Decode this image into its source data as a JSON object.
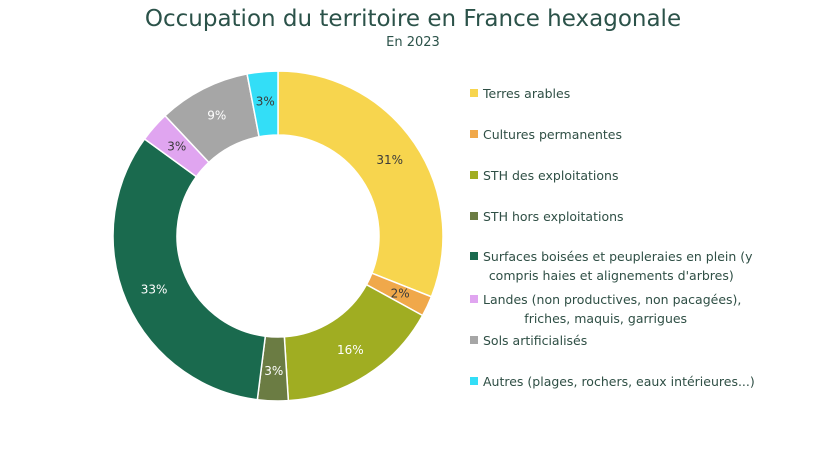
{
  "title": "Occupation du territoire en France hexagonale",
  "subtitle": "En 2023",
  "chart_data": {
    "type": "pie",
    "subtype": "donut",
    "title": "Occupation du territoire en France hexagonale",
    "subtitle": "En 2023",
    "legend_position": "right",
    "categories": [
      "Terres arables",
      "Cultures permanentes",
      "STH des exploitations",
      "STH hors exploitations",
      "Surfaces boisées et peupleraies en plein (y compris haies et alignements d'arbres)",
      "Landes (non productives, non pacagées), friches, maquis, garrigues",
      "Sols artificialisés",
      "Autres (plages, rochers, eaux intérieures...)"
    ],
    "values": [
      31,
      2,
      16,
      3,
      33,
      3,
      9,
      3
    ],
    "labels": [
      "31%",
      "2%",
      "16%",
      "3%",
      "33%",
      "3%",
      "9%",
      "3%"
    ],
    "colors": [
      "#f7d54e",
      "#f0a84a",
      "#a0ad22",
      "#6b7c43",
      "#1a6a4e",
      "#e0a5f0",
      "#a6a6a6",
      "#33def7"
    ],
    "label_colors": [
      "#3a3a3a",
      "#3a3a3a",
      "#ffffff",
      "#ffffff",
      "#ffffff",
      "#3a3a3a",
      "#ffffff",
      "#3a3a3a"
    ]
  },
  "legend": [
    {
      "line1": "Terres arables",
      "line2": ""
    },
    {
      "line1": "Cultures permanentes",
      "line2": ""
    },
    {
      "line1": "STH des exploitations",
      "line2": ""
    },
    {
      "line1": "STH hors exploitations",
      "line2": ""
    },
    {
      "line1": "Surfaces boisées et peupleraies en plein (y",
      "line2": "compris haies et alignements d'arbres)"
    },
    {
      "line1": "Landes (non productives, non pacagées),",
      "line2": "friches, maquis, garrigues"
    },
    {
      "line1": "Sols artificialisés",
      "line2": ""
    },
    {
      "line1": "Autres (plages, rochers, eaux intérieures...)",
      "line2": ""
    }
  ]
}
